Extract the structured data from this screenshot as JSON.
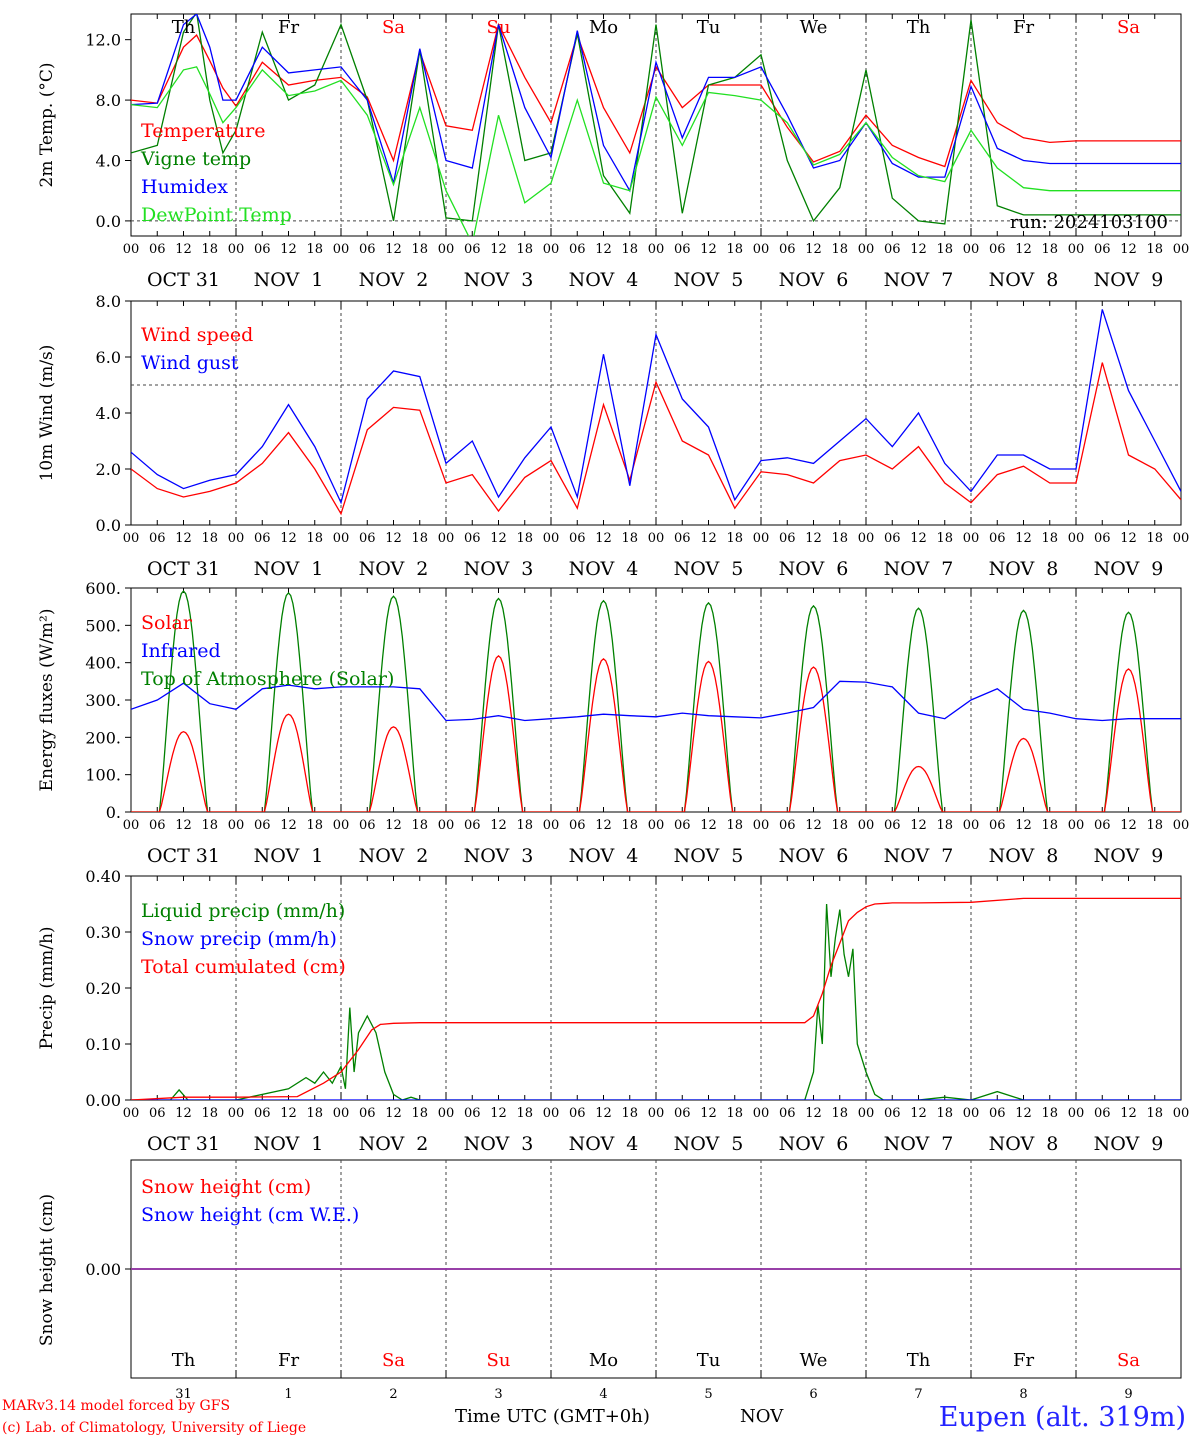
{
  "meta": {
    "run_label": "run: 2024103100",
    "station": "Eupen (alt. 319m)",
    "footer_line1": "MARv3.14 model forced by GFS",
    "footer_line2": "(c) Lab. of Climatology, University of Liege",
    "time_axis_label": "Time UTC (GMT+0h)",
    "month_label": "NOV"
  },
  "timeline": {
    "hour_ticks": [
      "00",
      "06",
      "12",
      "18"
    ],
    "end_tick": "00",
    "dates": [
      "OCT 31",
      "NOV  1",
      "NOV  2",
      "NOV  3",
      "NOV  4",
      "NOV  5",
      "NOV  6",
      "NOV  7",
      "NOV  8",
      "NOV  9"
    ],
    "weekdays": [
      "Th",
      "Fr",
      "Sa",
      "Su",
      "Mo",
      "Tu",
      "We",
      "Th",
      "Fr",
      "Sa"
    ],
    "weekend_flags": [
      false,
      false,
      true,
      true,
      false,
      false,
      false,
      false,
      false,
      true
    ],
    "day_numbers": [
      "31",
      "1",
      "2",
      "3",
      "4",
      "5",
      "6",
      "7",
      "8",
      "9"
    ]
  },
  "colors": {
    "red": "#ff0000",
    "green": "#008000",
    "blue": "#0000ff",
    "light_green": "#22e022",
    "purple": "#a040a0",
    "weekend": "#ff0000"
  },
  "chart_data": [
    {
      "type": "line",
      "ylabel": "2m Temp. (°C)",
      "yticks": [
        "0.0",
        "4.0",
        "8.0",
        "12.0"
      ],
      "ylim": [
        -1.0,
        13.7
      ],
      "x_unit": "hours since Oct 31 00 UTC",
      "reference_line": 0.0,
      "series": [
        {
          "name": "Temperature",
          "color": "red",
          "x": [
            0,
            6,
            12,
            15,
            18,
            21,
            24,
            30,
            36,
            42,
            48,
            54,
            60,
            66,
            72,
            78,
            84,
            90,
            96,
            102,
            108,
            114,
            120,
            126,
            132,
            138,
            144,
            150,
            156,
            162,
            168,
            174,
            180,
            186,
            192,
            198,
            204,
            210,
            216,
            222,
            228,
            234,
            240
          ],
          "y": [
            8.0,
            7.8,
            11.5,
            12.3,
            10.6,
            8.8,
            7.6,
            10.5,
            9.0,
            9.3,
            9.5,
            8.2,
            4.0,
            11.2,
            6.3,
            6.0,
            13.0,
            9.5,
            6.5,
            12.3,
            7.5,
            4.5,
            10.2,
            7.5,
            9.0,
            9.0,
            9.0,
            6.2,
            3.9,
            4.6,
            7.0,
            5.0,
            4.2,
            3.6,
            9.3,
            6.5,
            5.5,
            5.2,
            5.3,
            5.3,
            5.3,
            5.3,
            5.3
          ]
        },
        {
          "name": "Vigne temp",
          "color": "green",
          "x": [
            0,
            6,
            12,
            15,
            18,
            21,
            24,
            30,
            36,
            42,
            48,
            54,
            60,
            66,
            72,
            78,
            84,
            90,
            96,
            102,
            108,
            114,
            120,
            126,
            132,
            138,
            144,
            150,
            156,
            162,
            168,
            174,
            180,
            186,
            192,
            198,
            204,
            210,
            216,
            222,
            228,
            234,
            240
          ],
          "y": [
            4.5,
            5.0,
            12.5,
            13.8,
            8.0,
            4.5,
            6.0,
            12.5,
            8.0,
            9.0,
            13.0,
            8.0,
            0.0,
            11.3,
            0.2,
            0.0,
            13.0,
            4.0,
            4.5,
            12.4,
            3.0,
            0.5,
            13.0,
            0.5,
            9.0,
            9.5,
            11.0,
            4.0,
            0.0,
            2.2,
            10.0,
            1.5,
            0.0,
            -0.2,
            13.3,
            1.0,
            0.4,
            0.4,
            0.4,
            0.4,
            0.4,
            0.4,
            0.4
          ]
        },
        {
          "name": "Humidex",
          "color": "blue",
          "x": [
            0,
            6,
            12,
            15,
            18,
            21,
            24,
            30,
            36,
            42,
            48,
            54,
            60,
            66,
            72,
            78,
            84,
            90,
            96,
            102,
            108,
            114,
            120,
            126,
            132,
            138,
            144,
            150,
            156,
            162,
            168,
            174,
            180,
            186,
            192,
            198,
            204,
            210,
            216,
            222,
            228,
            234,
            240
          ],
          "y": [
            7.7,
            7.8,
            13.0,
            13.7,
            11.5,
            8.0,
            8.0,
            11.5,
            9.8,
            10.0,
            10.2,
            8.0,
            2.5,
            11.4,
            4.0,
            3.5,
            13.0,
            7.5,
            4.2,
            12.6,
            5.0,
            2.0,
            10.5,
            5.5,
            9.5,
            9.5,
            10.2,
            7.0,
            3.5,
            4.0,
            6.5,
            3.8,
            2.9,
            2.9,
            8.9,
            4.8,
            4.0,
            3.8,
            3.8,
            3.8,
            3.8,
            3.8,
            3.8
          ]
        },
        {
          "name": "DewPoint Temp",
          "color": "light_green",
          "x": [
            0,
            6,
            12,
            15,
            18,
            21,
            24,
            30,
            36,
            42,
            48,
            54,
            60,
            66,
            72,
            78,
            84,
            90,
            96,
            102,
            108,
            114,
            120,
            126,
            132,
            138,
            144,
            150,
            156,
            162,
            168,
            174,
            180,
            186,
            192,
            198,
            204,
            210,
            216,
            222,
            228,
            234,
            240
          ],
          "y": [
            7.7,
            7.5,
            10.0,
            10.2,
            8.4,
            6.5,
            7.5,
            10.0,
            8.3,
            8.6,
            9.3,
            7.0,
            2.4,
            7.5,
            2.0,
            -1.5,
            7.0,
            1.2,
            2.5,
            8.0,
            2.5,
            2.0,
            8.2,
            5.0,
            8.5,
            8.3,
            8.0,
            6.5,
            3.7,
            4.4,
            6.5,
            4.2,
            3.0,
            2.6,
            6.0,
            3.5,
            2.2,
            2.0,
            2.0,
            2.0,
            2.0,
            2.0,
            2.0
          ]
        }
      ]
    },
    {
      "type": "line",
      "ylabel": "10m Wind (m/s)",
      "yticks": [
        "0.0",
        "2.0",
        "4.0",
        "6.0",
        "8.0"
      ],
      "ylim": [
        0.0,
        8.0
      ],
      "reference_line": 5.0,
      "series": [
        {
          "name": "Wind speed",
          "color": "red",
          "x": [
            0,
            6,
            12,
            18,
            24,
            30,
            36,
            42,
            48,
            54,
            60,
            66,
            72,
            78,
            84,
            90,
            96,
            102,
            108,
            114,
            120,
            126,
            132,
            138,
            144,
            150,
            156,
            162,
            168,
            174,
            180,
            186,
            192,
            198,
            204,
            210,
            216,
            222,
            228,
            234,
            240
          ],
          "y": [
            2.0,
            1.3,
            1.0,
            1.2,
            1.5,
            2.2,
            3.3,
            2.0,
            0.4,
            3.4,
            4.2,
            4.1,
            1.5,
            1.8,
            0.5,
            1.7,
            2.3,
            0.6,
            4.3,
            1.6,
            5.1,
            3.0,
            2.5,
            0.6,
            1.9,
            1.8,
            1.5,
            2.3,
            2.5,
            2.0,
            2.8,
            1.5,
            0.8,
            1.8,
            2.1,
            1.5,
            1.5,
            5.8,
            2.5,
            2.0,
            0.9
          ]
        },
        {
          "name": "Wind gust",
          "color": "blue",
          "x": [
            0,
            6,
            12,
            18,
            24,
            30,
            36,
            42,
            48,
            54,
            60,
            66,
            72,
            78,
            84,
            90,
            96,
            102,
            108,
            114,
            120,
            126,
            132,
            138,
            144,
            150,
            156,
            162,
            168,
            174,
            180,
            186,
            192,
            198,
            204,
            210,
            216,
            222,
            228,
            234,
            240
          ],
          "y": [
            2.6,
            1.8,
            1.3,
            1.6,
            1.8,
            2.8,
            4.3,
            2.8,
            0.8,
            4.5,
            5.5,
            5.3,
            2.2,
            3.0,
            1.0,
            2.4,
            3.5,
            1.0,
            6.1,
            1.4,
            6.8,
            4.5,
            3.5,
            0.9,
            2.3,
            2.4,
            2.2,
            3.0,
            3.8,
            2.8,
            4.0,
            2.2,
            1.2,
            2.5,
            2.5,
            2.0,
            2.0,
            7.7,
            4.8,
            3.0,
            1.2
          ]
        }
      ]
    },
    {
      "type": "line",
      "ylabel": "Energy fluxes (W/m²)",
      "yticks": [
        "0.",
        "100.",
        "200.",
        "300.",
        "400.",
        "500.",
        "600."
      ],
      "ylim": [
        0,
        600
      ],
      "series": [
        {
          "name": "Solar",
          "color": "red",
          "peaks": [
            215,
            262,
            228,
            418,
            410,
            403,
            388,
            122,
            197,
            383
          ],
          "peak_hour": 12,
          "half_width_hours": 5.5
        },
        {
          "name": "Infrared",
          "color": "blue",
          "x": [
            0,
            6,
            12,
            18,
            24,
            30,
            36,
            42,
            48,
            54,
            60,
            66,
            72,
            78,
            84,
            90,
            96,
            102,
            108,
            114,
            120,
            126,
            132,
            138,
            144,
            150,
            156,
            162,
            168,
            174,
            180,
            186,
            192,
            198,
            204,
            210,
            216,
            222,
            228,
            234,
            240
          ],
          "y": [
            275,
            300,
            345,
            290,
            275,
            330,
            340,
            330,
            335,
            335,
            335,
            330,
            245,
            248,
            258,
            245,
            250,
            255,
            262,
            258,
            255,
            265,
            258,
            255,
            252,
            265,
            280,
            350,
            348,
            335,
            265,
            250,
            300,
            330,
            275,
            265,
            250,
            245,
            250,
            250,
            250
          ]
        },
        {
          "name": "Top of Atmosphere (Solar)",
          "color": "green",
          "peaks": [
            592,
            587,
            578,
            572,
            566,
            560,
            552,
            546,
            540,
            535
          ],
          "peak_hour": 12,
          "half_width_hours": 5.5
        }
      ]
    },
    {
      "type": "line",
      "ylabel": "Precip (mm/h)",
      "yticks": [
        "0.00",
        "0.10",
        "0.20",
        "0.30",
        "0.40"
      ],
      "ylim": [
        0.0,
        0.4
      ],
      "series": [
        {
          "name": "Liquid precip (mm/h)",
          "color": "green",
          "x": [
            0,
            9,
            11,
            13,
            24,
            36,
            40,
            42,
            44,
            46,
            48,
            49,
            50,
            51,
            52,
            54,
            56,
            58,
            60,
            62,
            64,
            66,
            72,
            78,
            84,
            96,
            108,
            120,
            132,
            144,
            154,
            156,
            157,
            158,
            159,
            160,
            161,
            162,
            163,
            164,
            165,
            166,
            168,
            170,
            172,
            180,
            186,
            192,
            198,
            204,
            210,
            216,
            222,
            228,
            234,
            240
          ],
          "y": [
            0,
            0,
            0.018,
            0,
            0,
            0.02,
            0.04,
            0.03,
            0.05,
            0.03,
            0.06,
            0.02,
            0.165,
            0.05,
            0.12,
            0.15,
            0.12,
            0.05,
            0.01,
            0,
            0.005,
            0,
            0,
            0,
            0,
            0,
            0,
            0,
            0,
            0,
            0,
            0.05,
            0.17,
            0.1,
            0.35,
            0.22,
            0.29,
            0.34,
            0.26,
            0.22,
            0.27,
            0.1,
            0.05,
            0.01,
            0,
            0,
            0.005,
            0,
            0.015,
            0,
            0,
            0,
            0,
            0,
            0,
            0
          ]
        },
        {
          "name": "Snow precip (mm/h)",
          "color": "blue",
          "x": [
            0,
            240
          ],
          "y": [
            0,
            0
          ]
        },
        {
          "name": "Total cumulated (cm)",
          "color": "red",
          "x": [
            0,
            12,
            24,
            38,
            44,
            48,
            52,
            55,
            57,
            60,
            66,
            72,
            96,
            120,
            144,
            150,
            154,
            156,
            158,
            160,
            162,
            164,
            166,
            168,
            170,
            174,
            180,
            192,
            204,
            216,
            228,
            240
          ],
          "y": [
            0,
            0.005,
            0.005,
            0.006,
            0.03,
            0.05,
            0.09,
            0.125,
            0.135,
            0.137,
            0.138,
            0.138,
            0.138,
            0.138,
            0.138,
            0.138,
            0.138,
            0.15,
            0.19,
            0.24,
            0.28,
            0.32,
            0.335,
            0.345,
            0.35,
            0.352,
            0.352,
            0.353,
            0.36,
            0.36,
            0.36,
            0.36
          ]
        }
      ]
    },
    {
      "type": "line",
      "ylabel": "Snow height (cm)",
      "yticks": [
        "0.00"
      ],
      "ylim": [
        -1,
        1
      ],
      "series": [
        {
          "name": "Snow height (cm)",
          "color": "red",
          "x": [
            0,
            240
          ],
          "y": [
            0,
            0
          ]
        },
        {
          "name": "Snow height (cm W.E.)",
          "color": "blue",
          "x": [
            0,
            240
          ],
          "y": [
            0,
            0
          ]
        }
      ]
    }
  ]
}
